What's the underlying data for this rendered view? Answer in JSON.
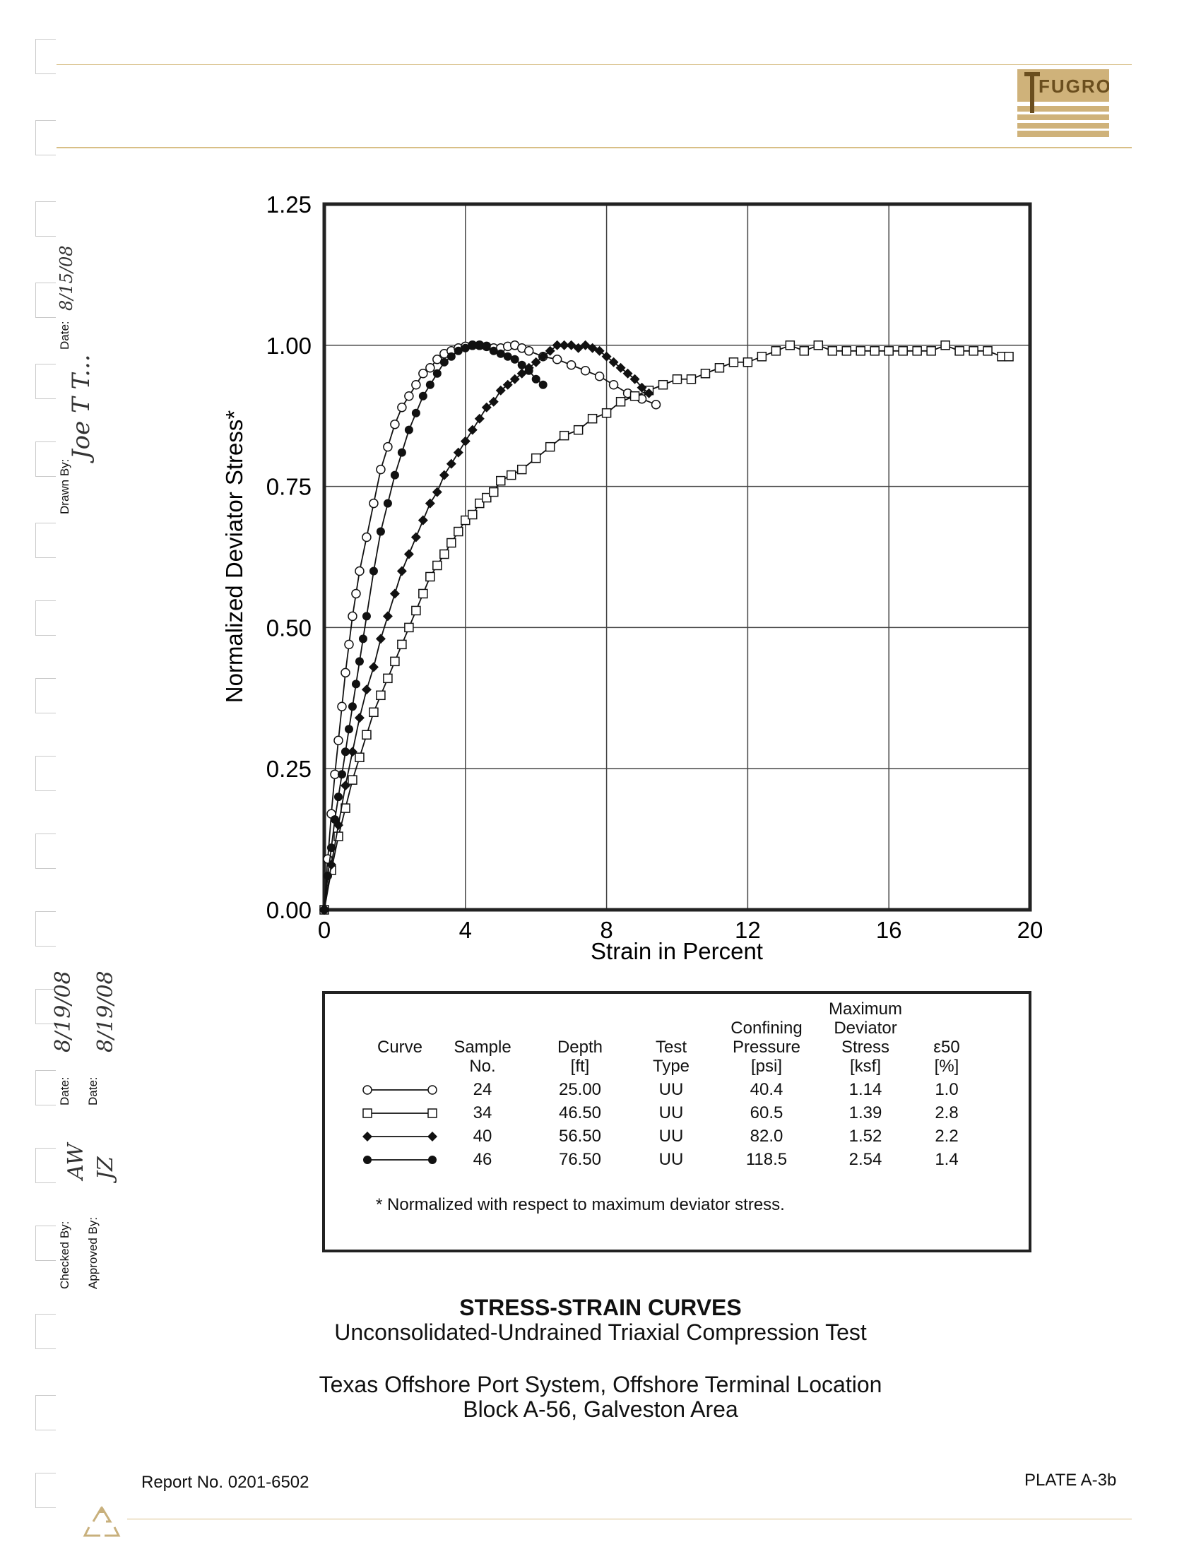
{
  "company": {
    "logo_text": "FUGRO"
  },
  "chart_data": {
    "type": "line",
    "xlabel": "Strain in Percent",
    "ylabel": "Normalized Deviator Stress*",
    "xlim": [
      0,
      20
    ],
    "ylim": [
      0,
      1.25
    ],
    "xticks": [
      "0",
      "4",
      "8",
      "12",
      "16",
      "20"
    ],
    "yticks": [
      "0.00",
      "0.25",
      "0.50",
      "0.75",
      "1.00",
      "1.25"
    ],
    "grid": true,
    "series": [
      {
        "marker": "open-circle",
        "x": [
          0,
          0.1,
          0.2,
          0.3,
          0.4,
          0.5,
          0.6,
          0.7,
          0.8,
          0.9,
          1.0,
          1.2,
          1.4,
          1.6,
          1.8,
          2.0,
          2.2,
          2.4,
          2.6,
          2.8,
          3.0,
          3.2,
          3.4,
          3.6,
          3.8,
          4.0,
          4.2,
          4.4,
          4.6,
          4.8,
          5.0,
          5.2,
          5.4,
          5.6,
          5.8,
          6.2,
          6.6,
          7.0,
          7.4,
          7.8,
          8.2,
          8.6,
          9.0,
          9.4
        ],
        "y": [
          0,
          0.09,
          0.17,
          0.24,
          0.3,
          0.36,
          0.42,
          0.47,
          0.52,
          0.56,
          0.6,
          0.66,
          0.72,
          0.78,
          0.82,
          0.86,
          0.89,
          0.91,
          0.93,
          0.95,
          0.96,
          0.975,
          0.985,
          0.99,
          0.995,
          0.998,
          1.0,
          1.0,
          0.998,
          0.995,
          0.995,
          0.998,
          1.0,
          0.995,
          0.99,
          0.98,
          0.975,
          0.965,
          0.955,
          0.945,
          0.93,
          0.915,
          0.905,
          0.895
        ]
      },
      {
        "marker": "open-square",
        "x": [
          0,
          0.2,
          0.4,
          0.6,
          0.8,
          1.0,
          1.2,
          1.4,
          1.6,
          1.8,
          2.0,
          2.2,
          2.4,
          2.6,
          2.8,
          3.0,
          3.2,
          3.4,
          3.6,
          3.8,
          4.0,
          4.2,
          4.4,
          4.6,
          4.8,
          5.0,
          5.3,
          5.6,
          6.0,
          6.4,
          6.8,
          7.2,
          7.6,
          8.0,
          8.4,
          8.8,
          9.2,
          9.6,
          10.0,
          10.4,
          10.8,
          11.2,
          11.6,
          12.0,
          12.4,
          12.8,
          13.2,
          13.6,
          14.0,
          14.4,
          14.8,
          15.2,
          15.6,
          16.0,
          16.4,
          16.8,
          17.2,
          17.6,
          18.0,
          18.4,
          18.8,
          19.2,
          19.4
        ],
        "y": [
          0,
          0.07,
          0.13,
          0.18,
          0.23,
          0.27,
          0.31,
          0.35,
          0.38,
          0.41,
          0.44,
          0.47,
          0.5,
          0.53,
          0.56,
          0.59,
          0.61,
          0.63,
          0.65,
          0.67,
          0.69,
          0.7,
          0.72,
          0.73,
          0.74,
          0.76,
          0.77,
          0.78,
          0.8,
          0.82,
          0.84,
          0.85,
          0.87,
          0.88,
          0.9,
          0.91,
          0.92,
          0.93,
          0.94,
          0.94,
          0.95,
          0.96,
          0.97,
          0.97,
          0.98,
          0.99,
          1.0,
          0.99,
          1.0,
          0.99,
          0.99,
          0.99,
          0.99,
          0.99,
          0.99,
          0.99,
          0.99,
          1.0,
          0.99,
          0.99,
          0.99,
          0.98,
          0.98
        ]
      },
      {
        "marker": "filled-diamond",
        "x": [
          0,
          0.2,
          0.4,
          0.6,
          0.8,
          1.0,
          1.2,
          1.4,
          1.6,
          1.8,
          2.0,
          2.2,
          2.4,
          2.6,
          2.8,
          3.0,
          3.2,
          3.4,
          3.6,
          3.8,
          4.0,
          4.2,
          4.4,
          4.6,
          4.8,
          5.0,
          5.2,
          5.4,
          5.6,
          5.8,
          6.0,
          6.2,
          6.4,
          6.6,
          6.8,
          7.0,
          7.2,
          7.4,
          7.6,
          7.8,
          8.0,
          8.2,
          8.4,
          8.6,
          8.8,
          9.0,
          9.2
        ],
        "y": [
          0,
          0.08,
          0.15,
          0.22,
          0.28,
          0.34,
          0.39,
          0.43,
          0.48,
          0.52,
          0.56,
          0.6,
          0.63,
          0.66,
          0.69,
          0.72,
          0.74,
          0.77,
          0.79,
          0.81,
          0.83,
          0.85,
          0.87,
          0.89,
          0.9,
          0.92,
          0.93,
          0.94,
          0.95,
          0.96,
          0.97,
          0.98,
          0.99,
          1.0,
          1.0,
          1.0,
          0.995,
          1.0,
          0.995,
          0.99,
          0.98,
          0.97,
          0.96,
          0.95,
          0.94,
          0.925,
          0.915
        ]
      },
      {
        "marker": "filled-circle",
        "x": [
          0,
          0.1,
          0.2,
          0.3,
          0.4,
          0.5,
          0.6,
          0.7,
          0.8,
          0.9,
          1.0,
          1.1,
          1.2,
          1.4,
          1.6,
          1.8,
          2.0,
          2.2,
          2.4,
          2.6,
          2.8,
          3.0,
          3.2,
          3.4,
          3.6,
          3.8,
          4.0,
          4.2,
          4.4,
          4.6,
          4.8,
          5.0,
          5.2,
          5.4,
          5.6,
          5.8,
          6.0,
          6.2
        ],
        "y": [
          0,
          0.06,
          0.11,
          0.16,
          0.2,
          0.24,
          0.28,
          0.32,
          0.36,
          0.4,
          0.44,
          0.48,
          0.52,
          0.6,
          0.67,
          0.72,
          0.77,
          0.81,
          0.85,
          0.88,
          0.91,
          0.93,
          0.95,
          0.97,
          0.98,
          0.99,
          0.995,
          1.0,
          1.0,
          0.998,
          0.99,
          0.985,
          0.98,
          0.975,
          0.965,
          0.955,
          0.94,
          0.93
        ]
      }
    ]
  },
  "table": {
    "headers": {
      "curve": "Curve",
      "sample": "Sample\nNo.",
      "depth": "Depth\n[ft]",
      "test": "Test\nType",
      "confining": "Confining\nPressure\n[psi]",
      "maxdev": "Maximum\nDeviator\nStress\n[ksf]",
      "e50": "ε50\n[%]"
    },
    "rows": [
      {
        "marker": "open-circle",
        "sample": "24",
        "depth": "25.00",
        "test": "UU",
        "confining": "40.4",
        "maxdev": "1.14",
        "e50": "1.0"
      },
      {
        "marker": "open-square",
        "sample": "34",
        "depth": "46.50",
        "test": "UU",
        "confining": "60.5",
        "maxdev": "1.39",
        "e50": "2.8"
      },
      {
        "marker": "filled-diamond",
        "sample": "40",
        "depth": "56.50",
        "test": "UU",
        "confining": "82.0",
        "maxdev": "1.52",
        "e50": "2.2"
      },
      {
        "marker": "filled-circle",
        "sample": "46",
        "depth": "76.50",
        "test": "UU",
        "confining": "118.5",
        "maxdev": "2.54",
        "e50": "1.4"
      }
    ],
    "footnote": "* Normalized with respect to maximum deviator stress."
  },
  "title": {
    "main": "STRESS-STRAIN CURVES",
    "sub": "Unconsolidated-Undrained Triaxial Compression Test",
    "project": "Texas Offshore Port System, Offshore Terminal Location",
    "location": "Block A-56, Galveston Area"
  },
  "signoff": {
    "drawn_label": "Drawn By:",
    "drawn_date_label": "Date:",
    "checked_label": "Checked By:",
    "checked_date_label": "Date:",
    "approved_label": "Approved By:",
    "approved_date_label": "Date:"
  },
  "footer": {
    "report_no": "Report No. 0201-6502",
    "plate": "PLATE A-3b"
  }
}
